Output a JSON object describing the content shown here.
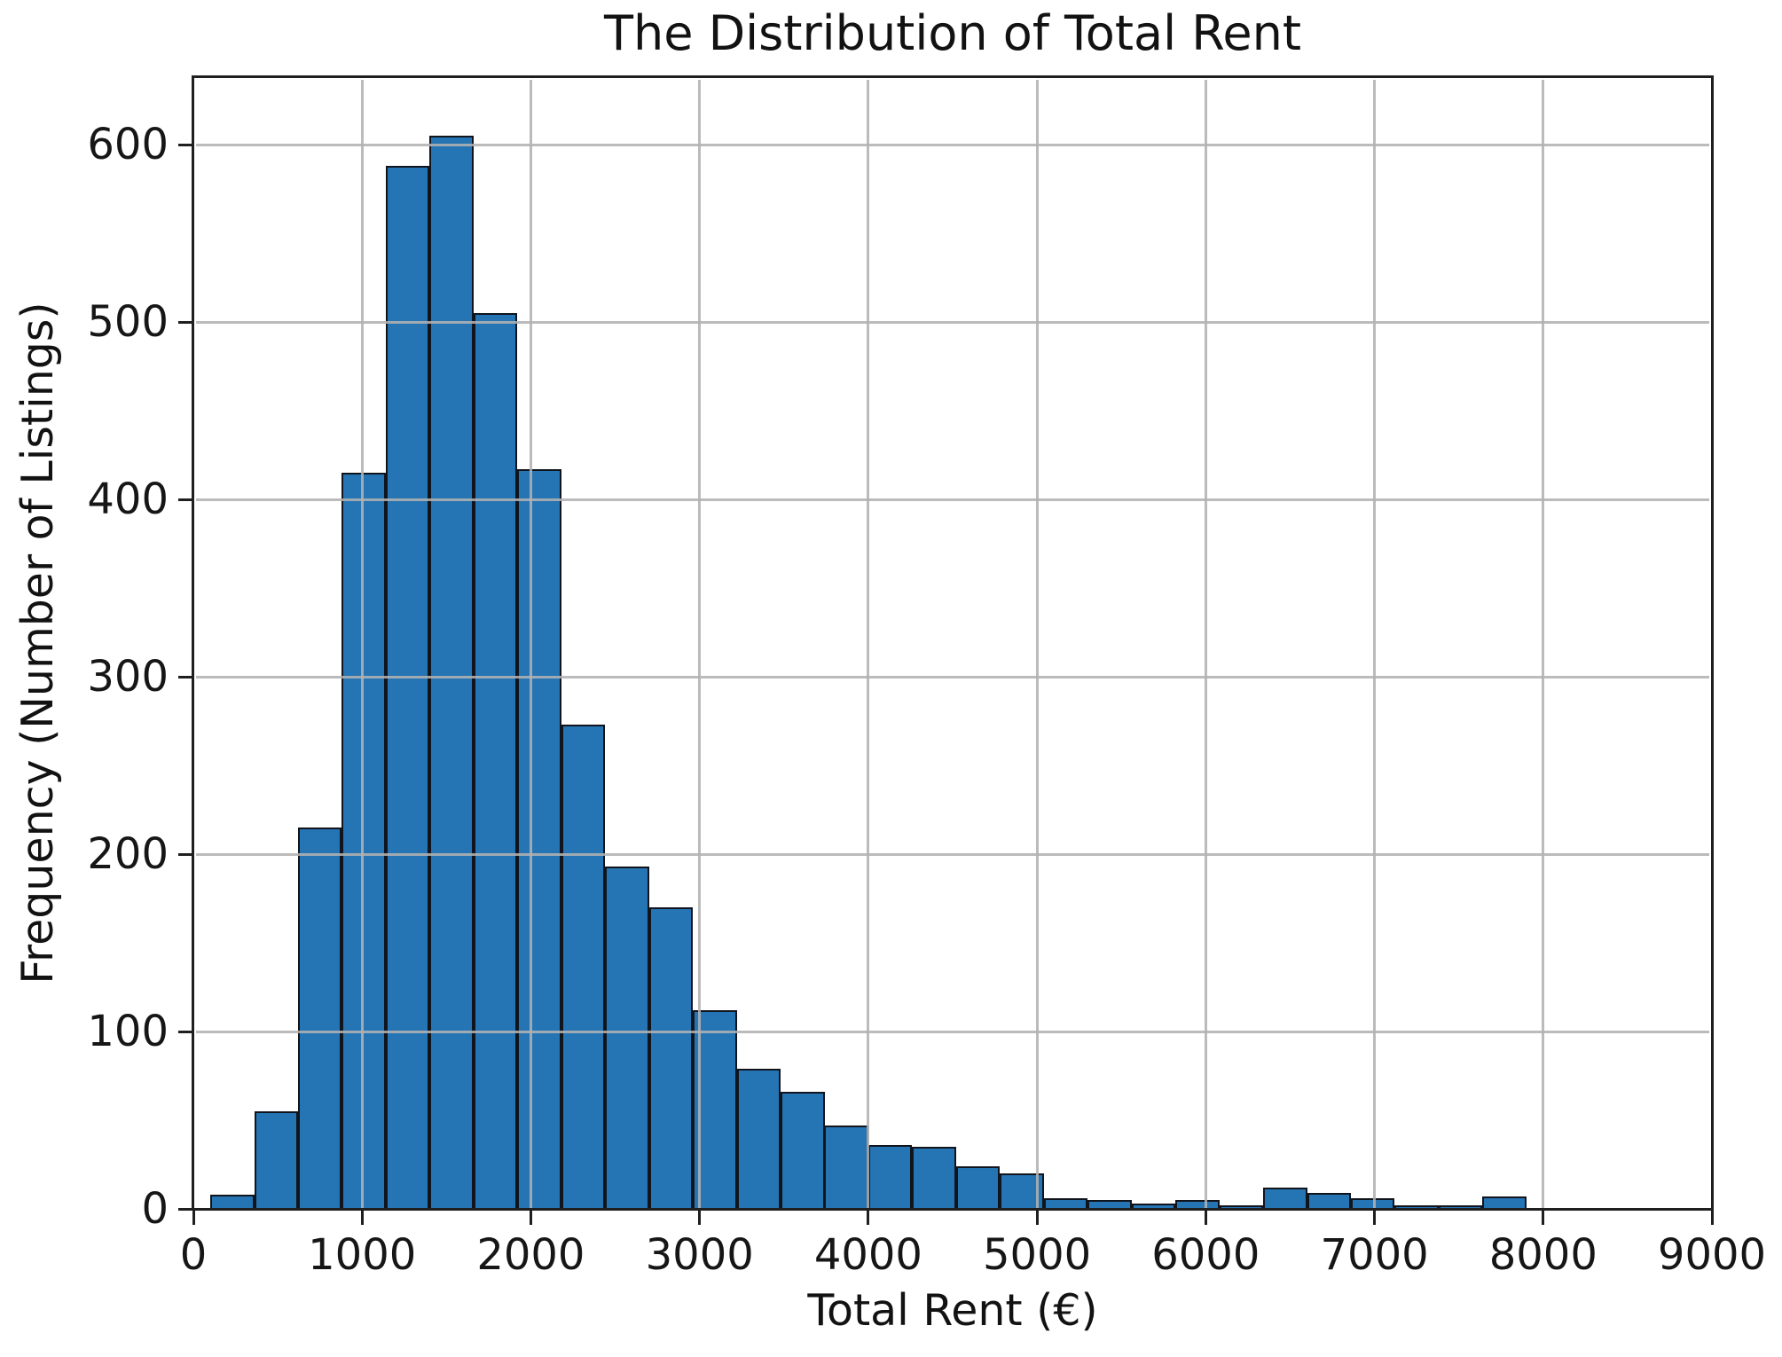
{
  "figure": {
    "background_color": "#ffffff"
  },
  "chart_data": {
    "type": "bar",
    "subtype": "histogram",
    "title": "The Distribution of Total Rent",
    "xlabel": "Total Rent (€)",
    "ylabel": "Frequency (Number of Listings)",
    "bin_start": 100,
    "bin_width": 260,
    "bin_edges": [
      100,
      360,
      620,
      880,
      1140,
      1400,
      1660,
      1920,
      2180,
      2440,
      2700,
      2960,
      3220,
      3480,
      3740,
      4000,
      4260,
      4520,
      4780,
      5040,
      5300,
      5560,
      5820,
      6080,
      6340,
      6600,
      6860,
      7120,
      7380,
      7640,
      7900
    ],
    "values": [
      8,
      55,
      215,
      415,
      588,
      605,
      505,
      417,
      273,
      193,
      170,
      112,
      79,
      66,
      47,
      36,
      35,
      24,
      20,
      6,
      5,
      3,
      5,
      2,
      12,
      9,
      6,
      2,
      2,
      7
    ],
    "xlim": [
      0,
      9000
    ],
    "ylim": [
      0,
      638
    ],
    "xticks": [
      0,
      1000,
      2000,
      3000,
      4000,
      5000,
      6000,
      7000,
      8000,
      9000
    ],
    "yticks": [
      0,
      100,
      200,
      300,
      400,
      500,
      600
    ],
    "grid": true,
    "grid_on_top": true,
    "grid_color": "#b2b2b2",
    "bar_color": "#2575b4",
    "bar_edge_color": "#10151d",
    "axis_color": "#1f1f1f",
    "text_color": "#161616",
    "legend": null
  }
}
